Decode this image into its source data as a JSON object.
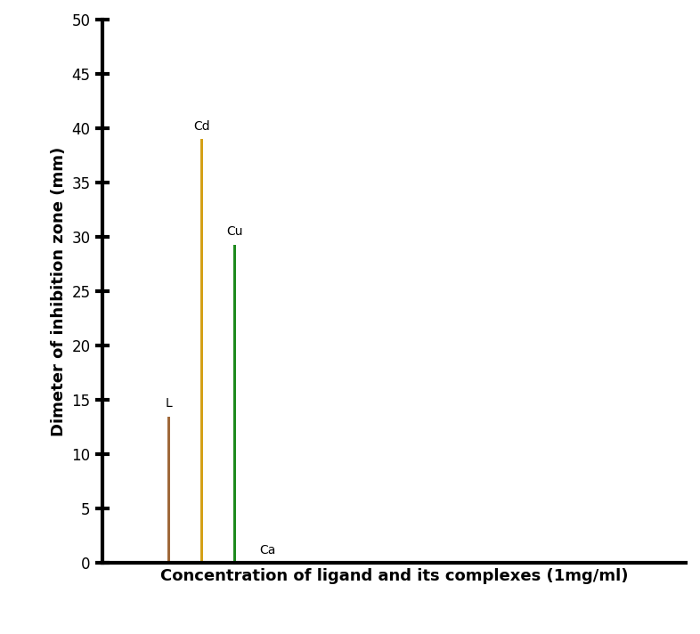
{
  "chart_data": {
    "type": "bar",
    "x_label": "Concentration of ligand and its complexes (1mg/ml)",
    "y_label": "Dimeter of inhibition zone (mm)",
    "categories": [
      "L",
      "Cd",
      "Cu",
      "Ca"
    ],
    "values": [
      13.5,
      39,
      29.3,
      0
    ],
    "colors": [
      "#a0693a",
      "#d4a017",
      "#1e8a1e",
      "#e8a050"
    ],
    "ylim": [
      0,
      50
    ],
    "yticks": [
      0,
      5,
      10,
      15,
      20,
      25,
      30,
      35,
      40,
      45,
      50
    ],
    "grid": false,
    "tick_labels": "y"
  }
}
